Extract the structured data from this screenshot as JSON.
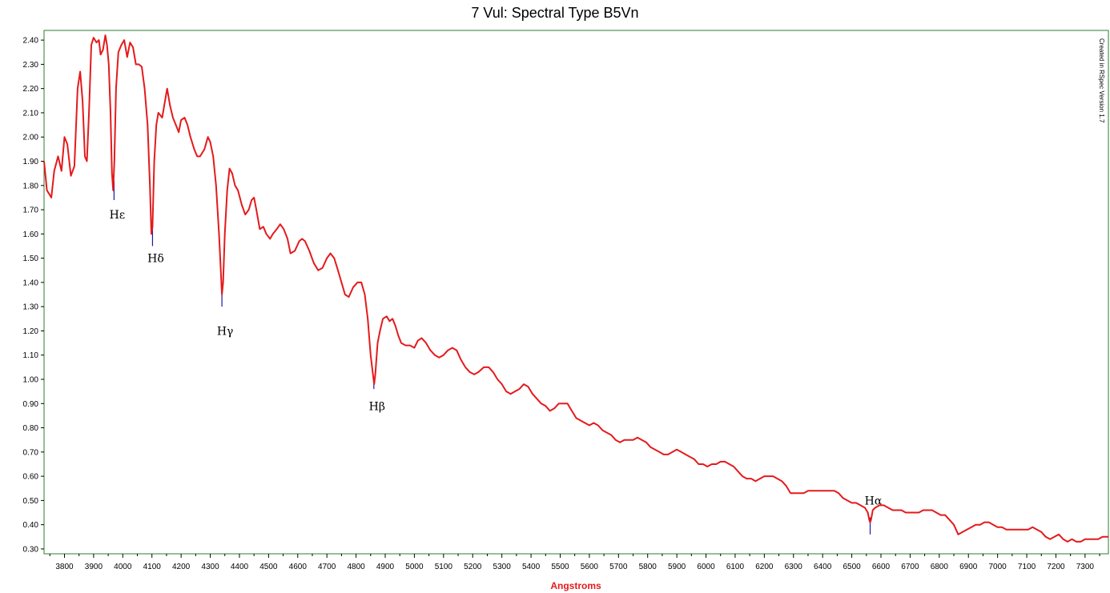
{
  "chart_data": {
    "type": "line",
    "title": "7 Vul: Spectral Type B5Vn",
    "xlabel": "Angstroms",
    "ylabel": "",
    "xlim": [
      3730,
      7380
    ],
    "ylim": [
      0.28,
      2.44
    ],
    "x_ticks": [
      3800,
      3900,
      4000,
      4100,
      4200,
      4300,
      4400,
      4500,
      4600,
      4700,
      4800,
      4900,
      5000,
      5100,
      5200,
      5300,
      5400,
      5500,
      5600,
      5700,
      5800,
      5900,
      6000,
      6100,
      6200,
      6300,
      6400,
      6500,
      6600,
      6700,
      6800,
      6900,
      7000,
      7100,
      7200,
      7300
    ],
    "y_ticks": [
      "2.40",
      "2.30",
      "2.20",
      "2.10",
      "2.00",
      "1.90",
      "1.80",
      "1.70",
      "1.60",
      "1.50",
      "1.40",
      "1.30",
      "1.20",
      "1.10",
      "1.00",
      "0.90",
      "0.80",
      "0.70",
      "0.60",
      "0.50",
      "0.40",
      "0.30"
    ],
    "watermark": "Created in RSpec Version 1.7",
    "colors": {
      "line": "#e41a1c",
      "marker": "#1a1aa8",
      "frame": "#2e7d32",
      "xlabel": "#e41a1c"
    },
    "series": [
      {
        "points": [
          [
            3730,
            1.9
          ],
          [
            3740,
            1.78
          ],
          [
            3755,
            1.75
          ],
          [
            3765,
            1.86
          ],
          [
            3778,
            1.92
          ],
          [
            3790,
            1.86
          ],
          [
            3800,
            2.0
          ],
          [
            3810,
            1.97
          ],
          [
            3822,
            1.84
          ],
          [
            3834,
            1.88
          ],
          [
            3845,
            2.2
          ],
          [
            3854,
            2.27
          ],
          [
            3862,
            2.15
          ],
          [
            3870,
            1.92
          ],
          [
            3877,
            1.9
          ],
          [
            3884,
            2.1
          ],
          [
            3892,
            2.38
          ],
          [
            3900,
            2.41
          ],
          [
            3910,
            2.39
          ],
          [
            3918,
            2.4
          ],
          [
            3924,
            2.34
          ],
          [
            3932,
            2.36
          ],
          [
            3940,
            2.42
          ],
          [
            3946,
            2.38
          ],
          [
            3952,
            2.3
          ],
          [
            3958,
            2.1
          ],
          [
            3963,
            1.85
          ],
          [
            3967,
            1.78
          ],
          [
            3971,
            1.9
          ],
          [
            3977,
            2.2
          ],
          [
            3985,
            2.35
          ],
          [
            3995,
            2.38
          ],
          [
            4005,
            2.4
          ],
          [
            4015,
            2.33
          ],
          [
            4025,
            2.39
          ],
          [
            4035,
            2.37
          ],
          [
            4045,
            2.3
          ],
          [
            4055,
            2.3
          ],
          [
            4065,
            2.29
          ],
          [
            4075,
            2.2
          ],
          [
            4085,
            2.05
          ],
          [
            4093,
            1.8
          ],
          [
            4098,
            1.6
          ],
          [
            4102,
            1.63
          ],
          [
            4108,
            1.9
          ],
          [
            4115,
            2.05
          ],
          [
            4122,
            2.1
          ],
          [
            4135,
            2.08
          ],
          [
            4145,
            2.15
          ],
          [
            4152,
            2.2
          ],
          [
            4162,
            2.13
          ],
          [
            4172,
            2.08
          ],
          [
            4182,
            2.05
          ],
          [
            4192,
            2.02
          ],
          [
            4200,
            2.07
          ],
          [
            4212,
            2.08
          ],
          [
            4222,
            2.05
          ],
          [
            4232,
            2.0
          ],
          [
            4245,
            1.95
          ],
          [
            4255,
            1.92
          ],
          [
            4265,
            1.92
          ],
          [
            4280,
            1.95
          ],
          [
            4292,
            2.0
          ],
          [
            4300,
            1.98
          ],
          [
            4310,
            1.92
          ],
          [
            4320,
            1.8
          ],
          [
            4330,
            1.6
          ],
          [
            4336,
            1.45
          ],
          [
            4340,
            1.35
          ],
          [
            4344,
            1.4
          ],
          [
            4350,
            1.6
          ],
          [
            4358,
            1.78
          ],
          [
            4366,
            1.87
          ],
          [
            4375,
            1.85
          ],
          [
            4385,
            1.8
          ],
          [
            4395,
            1.78
          ],
          [
            4408,
            1.72
          ],
          [
            4420,
            1.68
          ],
          [
            4432,
            1.7
          ],
          [
            4442,
            1.74
          ],
          [
            4450,
            1.75
          ],
          [
            4458,
            1.7
          ],
          [
            4470,
            1.62
          ],
          [
            4482,
            1.63
          ],
          [
            4492,
            1.6
          ],
          [
            4505,
            1.58
          ],
          [
            4515,
            1.6
          ],
          [
            4528,
            1.62
          ],
          [
            4540,
            1.64
          ],
          [
            4552,
            1.62
          ],
          [
            4565,
            1.58
          ],
          [
            4575,
            1.52
          ],
          [
            4590,
            1.53
          ],
          [
            4605,
            1.57
          ],
          [
            4615,
            1.58
          ],
          [
            4625,
            1.57
          ],
          [
            4640,
            1.53
          ],
          [
            4655,
            1.48
          ],
          [
            4670,
            1.45
          ],
          [
            4685,
            1.46
          ],
          [
            4700,
            1.5
          ],
          [
            4712,
            1.52
          ],
          [
            4725,
            1.5
          ],
          [
            4738,
            1.45
          ],
          [
            4750,
            1.4
          ],
          [
            4762,
            1.35
          ],
          [
            4775,
            1.34
          ],
          [
            4790,
            1.38
          ],
          [
            4805,
            1.4
          ],
          [
            4818,
            1.4
          ],
          [
            4830,
            1.35
          ],
          [
            4840,
            1.25
          ],
          [
            4850,
            1.1
          ],
          [
            4858,
            1.02
          ],
          [
            4862,
            0.98
          ],
          [
            4866,
            1.02
          ],
          [
            4874,
            1.15
          ],
          [
            4882,
            1.2
          ],
          [
            4892,
            1.25
          ],
          [
            4905,
            1.26
          ],
          [
            4915,
            1.24
          ],
          [
            4925,
            1.25
          ],
          [
            4935,
            1.22
          ],
          [
            4945,
            1.18
          ],
          [
            4955,
            1.15
          ],
          [
            4970,
            1.14
          ],
          [
            4985,
            1.14
          ],
          [
            5000,
            1.13
          ],
          [
            5012,
            1.16
          ],
          [
            5025,
            1.17
          ],
          [
            5040,
            1.15
          ],
          [
            5055,
            1.12
          ],
          [
            5070,
            1.1
          ],
          [
            5085,
            1.09
          ],
          [
            5100,
            1.1
          ],
          [
            5115,
            1.12
          ],
          [
            5130,
            1.13
          ],
          [
            5145,
            1.12
          ],
          [
            5160,
            1.08
          ],
          [
            5175,
            1.05
          ],
          [
            5190,
            1.03
          ],
          [
            5205,
            1.02
          ],
          [
            5220,
            1.03
          ],
          [
            5238,
            1.05
          ],
          [
            5255,
            1.05
          ],
          [
            5270,
            1.03
          ],
          [
            5285,
            1.0
          ],
          [
            5300,
            0.98
          ],
          [
            5315,
            0.95
          ],
          [
            5330,
            0.94
          ],
          [
            5345,
            0.95
          ],
          [
            5360,
            0.96
          ],
          [
            5375,
            0.98
          ],
          [
            5390,
            0.97
          ],
          [
            5405,
            0.94
          ],
          [
            5420,
            0.92
          ],
          [
            5435,
            0.9
          ],
          [
            5450,
            0.89
          ],
          [
            5465,
            0.87
          ],
          [
            5480,
            0.88
          ],
          [
            5495,
            0.9
          ],
          [
            5510,
            0.9
          ],
          [
            5525,
            0.9
          ],
          [
            5540,
            0.87
          ],
          [
            5555,
            0.84
          ],
          [
            5570,
            0.83
          ],
          [
            5585,
            0.82
          ],
          [
            5600,
            0.81
          ],
          [
            5615,
            0.82
          ],
          [
            5630,
            0.81
          ],
          [
            5645,
            0.79
          ],
          [
            5660,
            0.78
          ],
          [
            5675,
            0.77
          ],
          [
            5690,
            0.75
          ],
          [
            5705,
            0.74
          ],
          [
            5720,
            0.75
          ],
          [
            5735,
            0.75
          ],
          [
            5750,
            0.75
          ],
          [
            5765,
            0.76
          ],
          [
            5780,
            0.75
          ],
          [
            5795,
            0.74
          ],
          [
            5810,
            0.72
          ],
          [
            5825,
            0.71
          ],
          [
            5840,
            0.7
          ],
          [
            5855,
            0.69
          ],
          [
            5870,
            0.69
          ],
          [
            5885,
            0.7
          ],
          [
            5900,
            0.71
          ],
          [
            5915,
            0.7
          ],
          [
            5930,
            0.69
          ],
          [
            5945,
            0.68
          ],
          [
            5960,
            0.67
          ],
          [
            5975,
            0.65
          ],
          [
            5990,
            0.65
          ],
          [
            6005,
            0.64
          ],
          [
            6020,
            0.65
          ],
          [
            6035,
            0.65
          ],
          [
            6050,
            0.66
          ],
          [
            6065,
            0.66
          ],
          [
            6080,
            0.65
          ],
          [
            6095,
            0.64
          ],
          [
            6110,
            0.62
          ],
          [
            6125,
            0.6
          ],
          [
            6140,
            0.59
          ],
          [
            6155,
            0.59
          ],
          [
            6170,
            0.58
          ],
          [
            6185,
            0.59
          ],
          [
            6200,
            0.6
          ],
          [
            6215,
            0.6
          ],
          [
            6230,
            0.6
          ],
          [
            6245,
            0.59
          ],
          [
            6260,
            0.58
          ],
          [
            6275,
            0.56
          ],
          [
            6290,
            0.53
          ],
          [
            6305,
            0.53
          ],
          [
            6320,
            0.53
          ],
          [
            6335,
            0.53
          ],
          [
            6350,
            0.54
          ],
          [
            6365,
            0.54
          ],
          [
            6380,
            0.54
          ],
          [
            6395,
            0.54
          ],
          [
            6410,
            0.54
          ],
          [
            6425,
            0.54
          ],
          [
            6440,
            0.54
          ],
          [
            6455,
            0.53
          ],
          [
            6470,
            0.51
          ],
          [
            6485,
            0.5
          ],
          [
            6500,
            0.49
          ],
          [
            6515,
            0.49
          ],
          [
            6530,
            0.48
          ],
          [
            6545,
            0.47
          ],
          [
            6555,
            0.45
          ],
          [
            6560,
            0.42
          ],
          [
            6563,
            0.41
          ],
          [
            6566,
            0.42
          ],
          [
            6572,
            0.46
          ],
          [
            6580,
            0.47
          ],
          [
            6595,
            0.48
          ],
          [
            6610,
            0.48
          ],
          [
            6625,
            0.47
          ],
          [
            6640,
            0.46
          ],
          [
            6655,
            0.46
          ],
          [
            6670,
            0.46
          ],
          [
            6685,
            0.45
          ],
          [
            6700,
            0.45
          ],
          [
            6715,
            0.45
          ],
          [
            6730,
            0.45
          ],
          [
            6745,
            0.46
          ],
          [
            6760,
            0.46
          ],
          [
            6775,
            0.46
          ],
          [
            6790,
            0.45
          ],
          [
            6805,
            0.44
          ],
          [
            6820,
            0.44
          ],
          [
            6835,
            0.42
          ],
          [
            6850,
            0.4
          ],
          [
            6865,
            0.36
          ],
          [
            6880,
            0.37
          ],
          [
            6895,
            0.38
          ],
          [
            6910,
            0.39
          ],
          [
            6925,
            0.4
          ],
          [
            6940,
            0.4
          ],
          [
            6955,
            0.41
          ],
          [
            6970,
            0.41
          ],
          [
            6985,
            0.4
          ],
          [
            7000,
            0.39
          ],
          [
            7015,
            0.39
          ],
          [
            7030,
            0.38
          ],
          [
            7045,
            0.38
          ],
          [
            7060,
            0.38
          ],
          [
            7075,
            0.38
          ],
          [
            7090,
            0.38
          ],
          [
            7105,
            0.38
          ],
          [
            7120,
            0.39
          ],
          [
            7135,
            0.38
          ],
          [
            7150,
            0.37
          ],
          [
            7165,
            0.35
          ],
          [
            7180,
            0.34
          ],
          [
            7195,
            0.35
          ],
          [
            7210,
            0.36
          ],
          [
            7225,
            0.34
          ],
          [
            7240,
            0.33
          ],
          [
            7255,
            0.34
          ],
          [
            7270,
            0.33
          ],
          [
            7285,
            0.33
          ],
          [
            7300,
            0.34
          ],
          [
            7315,
            0.34
          ],
          [
            7330,
            0.34
          ],
          [
            7345,
            0.34
          ],
          [
            7360,
            0.35
          ],
          [
            7380,
            0.35
          ]
        ]
      }
    ],
    "annotations": [
      {
        "label": "Hε",
        "x": 3970,
        "y_top": 1.82,
        "y_bottom": 1.74,
        "label_y": 1.68
      },
      {
        "label": "Hδ",
        "x": 4102,
        "y_top": 1.64,
        "y_bottom": 1.55,
        "label_y": 1.5
      },
      {
        "label": "Hγ",
        "x": 4340,
        "y_top": 1.38,
        "y_bottom": 1.3,
        "label_y": 1.2
      },
      {
        "label": "Hβ",
        "x": 4861,
        "y_top": 1.01,
        "y_bottom": 0.96,
        "label_y": 0.89
      },
      {
        "label": "Hα",
        "x": 6563,
        "y_top": 0.43,
        "y_bottom": 0.36,
        "label_y": 0.5
      }
    ]
  }
}
